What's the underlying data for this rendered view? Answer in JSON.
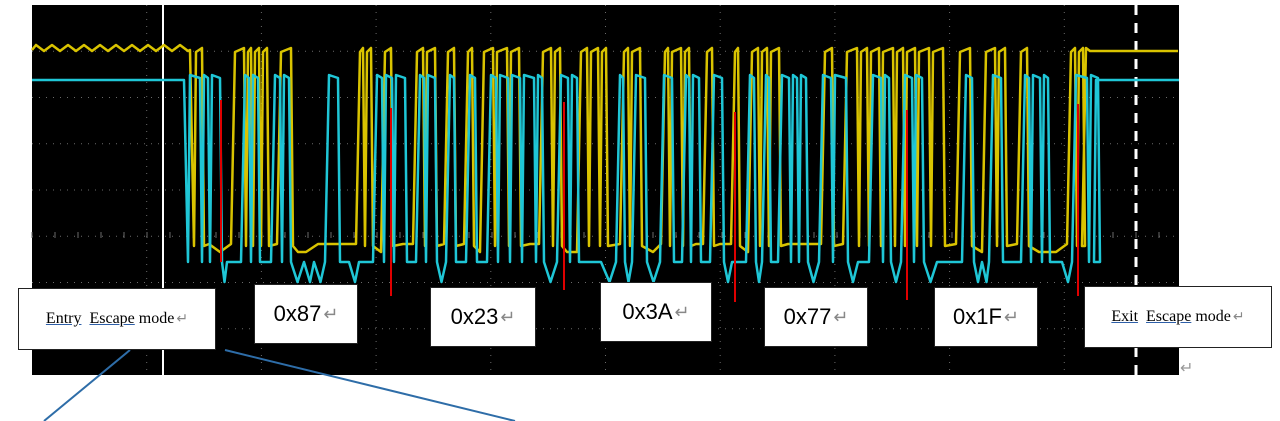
{
  "colors": {
    "screen": "#000000",
    "trace_a": "#d9c300",
    "trace_b": "#1fc6d6",
    "marker": "#e00000",
    "cursor": "#ffffff",
    "grid": "#6a6a6a",
    "callout": "#2e6da8"
  },
  "labels": {
    "entry": {
      "word1": "Entry",
      "word2": "Escape",
      "word3": "mode",
      "ret": "↵"
    },
    "bytes": [
      {
        "text": "0x87",
        "ret": "↵"
      },
      {
        "text": "0x23",
        "ret": "↵"
      },
      {
        "text": "0x3A",
        "ret": "↵"
      },
      {
        "text": "0x77",
        "ret": "↵"
      },
      {
        "text": "0x1F",
        "ret": "↵"
      }
    ],
    "exit": {
      "word1": "Exit",
      "word2": "Escape",
      "word3": "mode",
      "ret": "↵"
    },
    "stray_return": "↵"
  }
}
